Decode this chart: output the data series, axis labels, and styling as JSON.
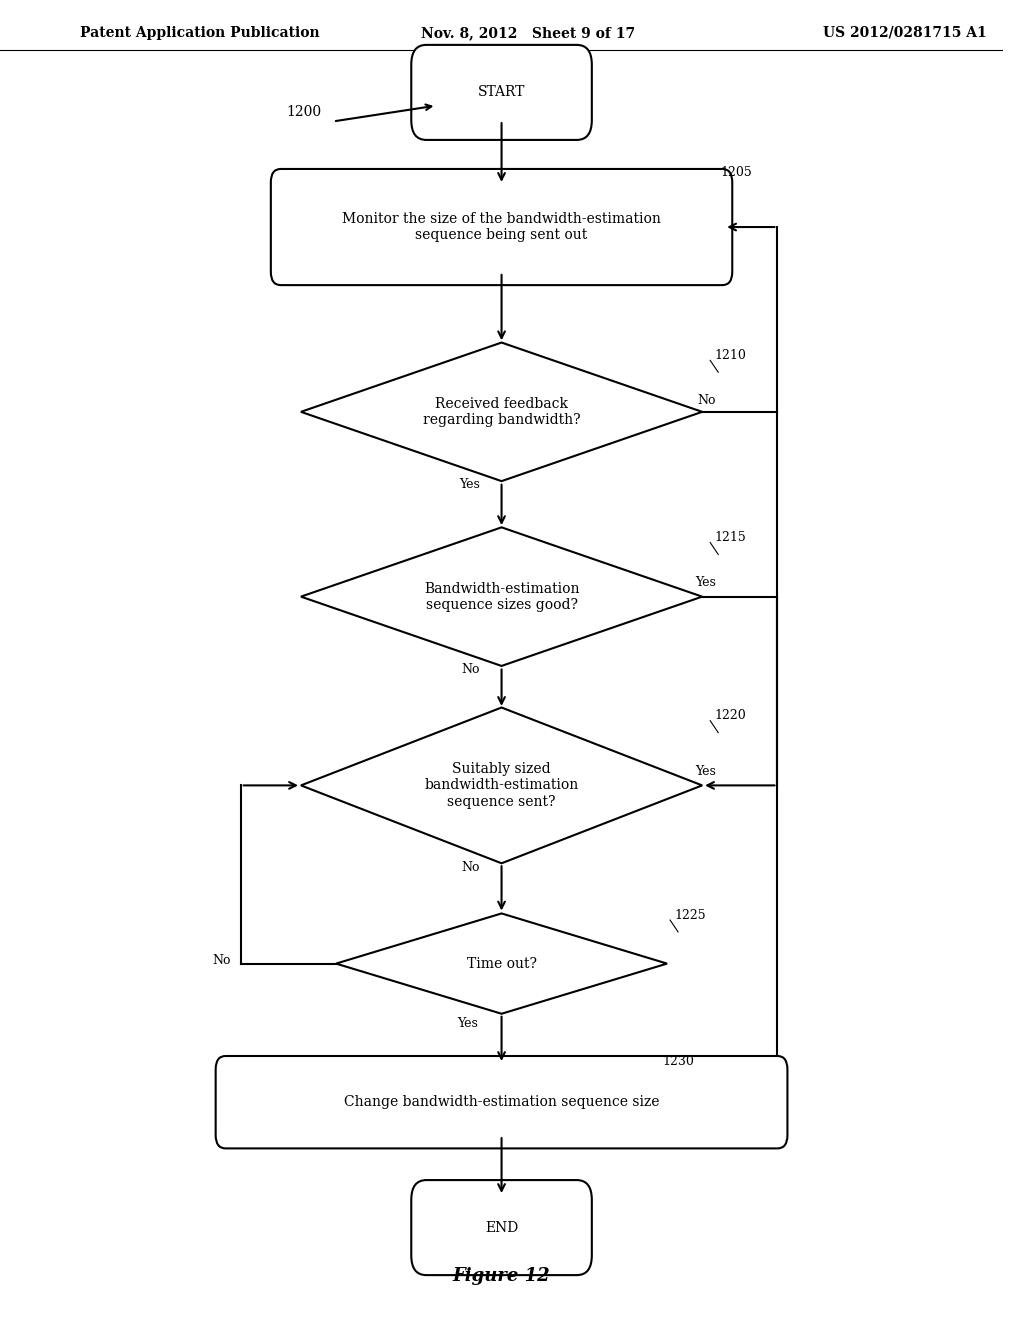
{
  "bg_color": "#ffffff",
  "header_left": "Patent Application Publication",
  "header_mid": "Nov. 8, 2012   Sheet 9 of 17",
  "header_right": "US 2012/0281715 A1",
  "figure_label": "Figure 12",
  "line_color": "#000000",
  "line_width": 1.5,
  "font_size": 10,
  "header_font_size": 10
}
